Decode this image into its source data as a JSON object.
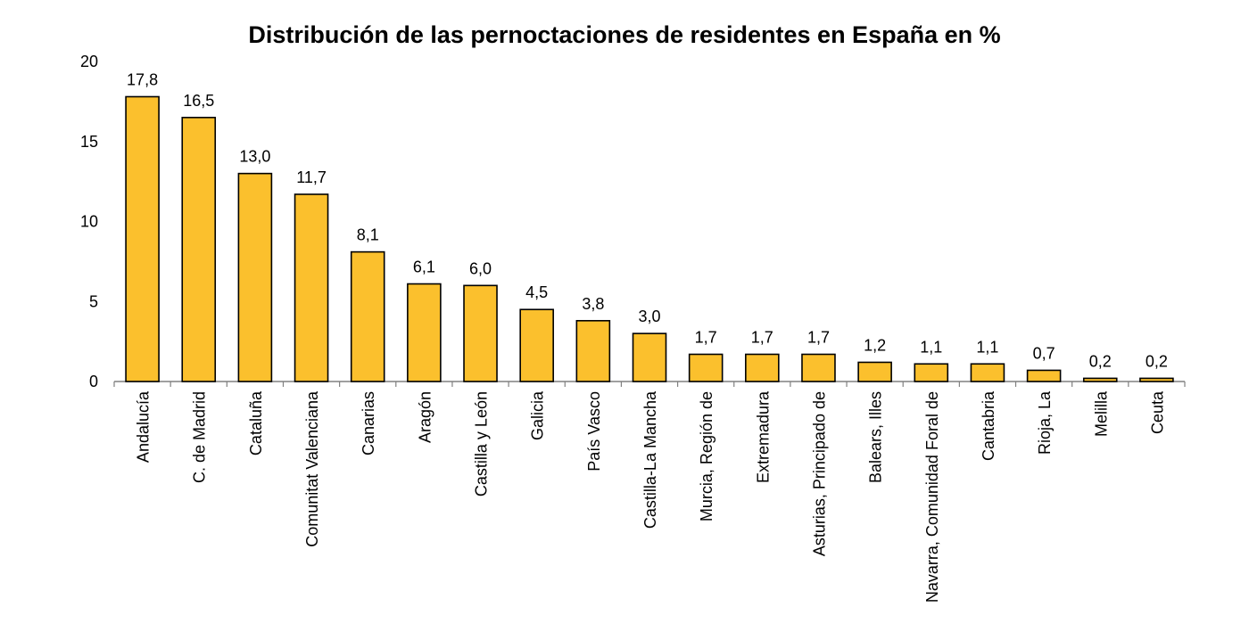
{
  "chart_data": {
    "type": "bar",
    "title": "Distribución de las pernoctaciones de residentes en España en %",
    "xlabel": "",
    "ylabel": "",
    "ylim": [
      0,
      20
    ],
    "yticks": [
      "0",
      "5",
      "10",
      "15",
      "20"
    ],
    "grid": false,
    "bar_color": "#FBC02D",
    "bar_edge_color": "#000000",
    "categories": [
      "Andalucía",
      "C. de Madrid",
      "Cataluña",
      "Comunitat Valenciana",
      "Canarias",
      "Aragón",
      "Castilla y León",
      "Galicia",
      "País Vasco",
      "Castilla-La Mancha",
      "Murcia, Región de",
      "Extremadura",
      "Asturias, Principado de",
      "Balears, Illes",
      "Navarra, Comunidad Foral de",
      "Cantabria",
      "Rioja, La",
      "Melilla",
      "Ceuta"
    ],
    "values": [
      17.8,
      16.5,
      13.0,
      11.7,
      8.1,
      6.1,
      6.0,
      4.5,
      3.8,
      3.0,
      1.7,
      1.7,
      1.7,
      1.2,
      1.1,
      1.1,
      0.7,
      0.2,
      0.2
    ],
    "data_labels": [
      "17,8",
      "16,5",
      "13,0",
      "11,7",
      "8,1",
      "6,1",
      "6,0",
      "4,5",
      "3,8",
      "3,0",
      "1,7",
      "1,7",
      "1,7",
      "1,2",
      "1,1",
      "1,1",
      "0,7",
      "0,2",
      "0,2"
    ]
  }
}
